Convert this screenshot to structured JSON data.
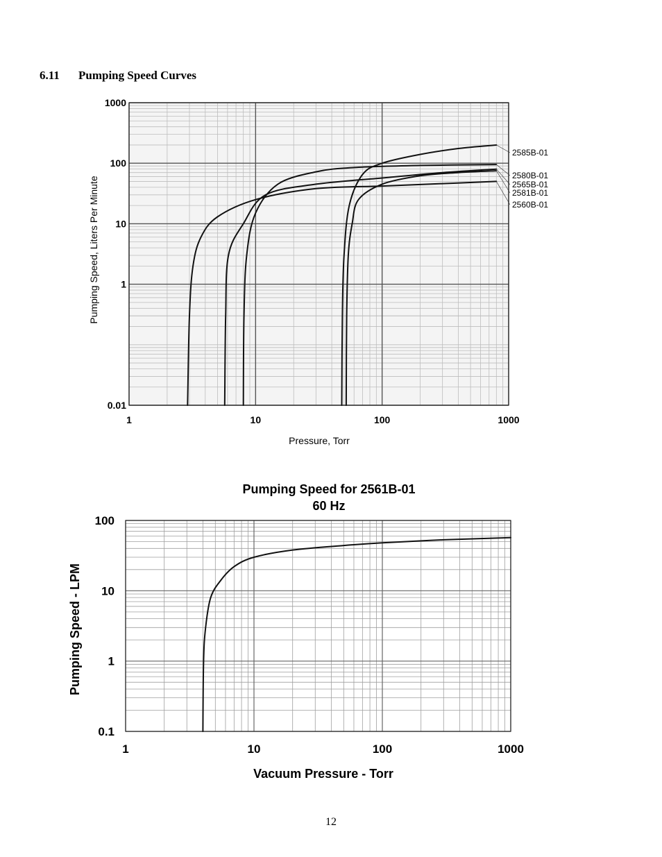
{
  "section": {
    "number": "6.11",
    "title": "Pumping Speed Curves"
  },
  "page_number": "12",
  "chart_data": [
    {
      "type": "line",
      "title": "",
      "xlabel": "Pressure, Torr",
      "ylabel": "Pumping Speed, Liters Per Minute",
      "xscale": "log",
      "yscale": "log",
      "xlim": [
        1,
        1000
      ],
      "ylim": [
        0.01,
        1000
      ],
      "xticks": [
        1,
        10,
        100,
        1000
      ],
      "xtick_labels": [
        "1",
        "10",
        "100",
        "1000"
      ],
      "yticks": [
        0.01,
        1,
        10,
        100,
        1000
      ],
      "ytick_labels": [
        "0.01",
        "1",
        "10",
        "100",
        "1000"
      ],
      "grid": true,
      "legend": "right",
      "series": [
        {
          "name": "2585B-01",
          "ultimate": 48,
          "points": [
            [
              48,
              0.01
            ],
            [
              48.5,
              0.3
            ],
            [
              50,
              3
            ],
            [
              55,
              20
            ],
            [
              70,
              65
            ],
            [
              100,
              100
            ],
            [
              200,
              140
            ],
            [
              400,
              175
            ],
            [
              800,
              200
            ]
          ]
        },
        {
          "name": "2580B-01",
          "ultimate": 8,
          "points": [
            [
              8,
              0.01
            ],
            [
              8.1,
              0.3
            ],
            [
              8.5,
              3
            ],
            [
              10,
              15
            ],
            [
              15,
              45
            ],
            [
              30,
              72
            ],
            [
              60,
              85
            ],
            [
              200,
              92
            ],
            [
              800,
              95
            ]
          ]
        },
        {
          "name": "2565B-01",
          "ultimate": 5.7,
          "points": [
            [
              5.7,
              0.01
            ],
            [
              5.8,
              0.3
            ],
            [
              6.1,
              3
            ],
            [
              8,
              10
            ],
            [
              12,
              30
            ],
            [
              30,
              45
            ],
            [
              100,
              57
            ],
            [
              300,
              70
            ],
            [
              800,
              80
            ]
          ]
        },
        {
          "name": "2581B-01",
          "ultimate": 52,
          "points": [
            [
              52,
              0.01
            ],
            [
              52.5,
              0.3
            ],
            [
              54,
              3
            ],
            [
              58,
              10
            ],
            [
              65,
              25
            ],
            [
              100,
              45
            ],
            [
              200,
              62
            ],
            [
              400,
              70
            ],
            [
              800,
              75
            ]
          ]
        },
        {
          "name": "2560B-01",
          "ultimate": 2.9,
          "points": [
            [
              2.9,
              0.01
            ],
            [
              3,
              0.3
            ],
            [
              3.2,
              2
            ],
            [
              3.7,
              6
            ],
            [
              5,
              13
            ],
            [
              10,
              25
            ],
            [
              30,
              38
            ],
            [
              100,
              42
            ],
            [
              300,
              46
            ],
            [
              800,
              50
            ]
          ]
        }
      ]
    },
    {
      "type": "line",
      "title": "Pumping Speed for 2561B-01",
      "subtitle": "60 Hz",
      "xlabel": "Vacuum Pressure - Torr",
      "ylabel": "Pumping Speed - LPM",
      "xscale": "log",
      "yscale": "log",
      "xlim": [
        1,
        1000
      ],
      "ylim": [
        0.1,
        100
      ],
      "xticks": [
        1,
        10,
        100,
        1000
      ],
      "xtick_labels": [
        "1",
        "10",
        "100",
        "1000"
      ],
      "yticks": [
        0.1,
        1,
        10,
        100
      ],
      "ytick_labels": [
        "0.1",
        "1",
        "10",
        "100"
      ],
      "grid": true,
      "legend": "none",
      "series": [
        {
          "name": "",
          "ultimate": 4,
          "points": [
            [
              4,
              0.1
            ],
            [
              4.05,
              1
            ],
            [
              4.2,
              3
            ],
            [
              4.6,
              8
            ],
            [
              5.5,
              14
            ],
            [
              7,
              22
            ],
            [
              10,
              30
            ],
            [
              20,
              38
            ],
            [
              50,
              44
            ],
            [
              100,
              48
            ],
            [
              300,
              53
            ],
            [
              1000,
              57
            ]
          ]
        }
      ]
    }
  ]
}
